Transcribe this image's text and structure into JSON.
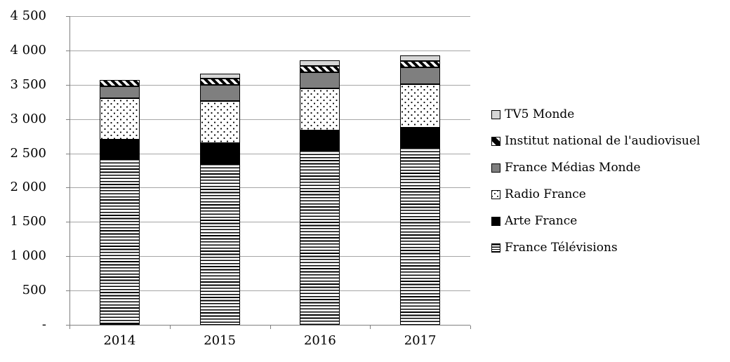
{
  "chart_data": {
    "type": "bar",
    "stacked": true,
    "title": "",
    "xlabel": "",
    "ylabel": "",
    "categories": [
      "2014",
      "2015",
      "2016",
      "2017"
    ],
    "series": [
      {
        "name": "France Télévisions",
        "pattern": "horizontal-lines",
        "values": [
          2420,
          2355,
          2545,
          2585
        ]
      },
      {
        "name": "Arte France",
        "pattern": "solid-black",
        "values": [
          280,
          290,
          285,
          285
        ]
      },
      {
        "name": "Radio France",
        "pattern": "dots",
        "values": [
          600,
          615,
          620,
          635
        ]
      },
      {
        "name": "France Médias Monde",
        "pattern": "solid-gray",
        "values": [
          180,
          235,
          230,
          245
        ]
      },
      {
        "name": "Institut national de l'audiovisuel",
        "pattern": "diagonal-stripes",
        "values": [
          85,
          95,
          90,
          95
        ]
      },
      {
        "name": "TV5 Monde",
        "pattern": "solid-lightgray",
        "values": [
          0,
          75,
          85,
          85
        ]
      }
    ],
    "totals": [
      3565,
      3665,
      3855,
      3930
    ],
    "y_axis": {
      "min": 0,
      "max": 4500,
      "tick_interval": 500,
      "tick_labels": [
        "-",
        "500",
        "1 000",
        "1 500",
        "2 000",
        "2 500",
        "3 000",
        "3 500",
        "4 000",
        "4 500"
      ]
    },
    "x_axis": {
      "tick_labels": [
        "2014",
        "2015",
        "2016",
        "2017"
      ]
    },
    "legend": {
      "position": "right",
      "order_top_to_bottom": [
        "TV5 Monde",
        "Institut national de l'audiovisuel",
        "France Médias Monde",
        "Radio France",
        "Arte France",
        "France Télévisions"
      ]
    },
    "grid": true,
    "colors": {
      "black": "#000000",
      "gray": "#7f7f7f",
      "light_gray": "#d6d6d6",
      "grid_line": "#a6a6a6",
      "axis_line": "#808080",
      "background": "#ffffff"
    }
  }
}
